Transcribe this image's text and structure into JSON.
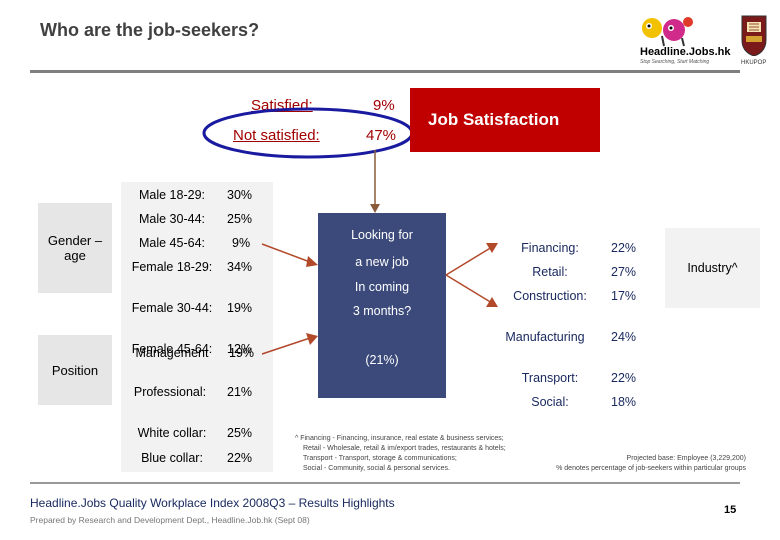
{
  "header": {
    "title": "Who are the job-seekers?",
    "logo_text": "Headline.Jobs.hk",
    "logo_tagline": "Stop Searching, Start Matching",
    "hku_label": "HKUPOP"
  },
  "satisfaction": {
    "satisfied_label": "Satisfied:",
    "satisfied_value": "9%",
    "not_satisfied_label": "Not satisfied:",
    "not_satisfied_value": "47%",
    "box_title": "Job Satisfaction"
  },
  "side_labels": {
    "gender_age": "Gender – age",
    "position": "Position"
  },
  "demographics": [
    {
      "label": "Male 18-29:",
      "value": "30%"
    },
    {
      "label": "Male 30-44:",
      "value": "25%"
    },
    {
      "label": "Male 45-64:",
      "value": "9%"
    },
    {
      "label": "Female 18-29:",
      "value": "34%"
    },
    {
      "label": "Female 30-44:",
      "value": "19%"
    },
    {
      "label": "Female 45-64:",
      "value": "12%"
    }
  ],
  "positions": [
    {
      "label": "Management",
      "value": "19%"
    },
    {
      "label": "Professional:",
      "value": "21%"
    },
    {
      "label": "White collar:",
      "value": "25%"
    },
    {
      "label": "Blue collar:",
      "value": "22%"
    }
  ],
  "center": {
    "line1": "Looking for",
    "line2": "a new job",
    "line3": "In coming",
    "line4": "3 months?",
    "percent": "(21%)"
  },
  "industry": {
    "box_label": "Industry^",
    "items": [
      {
        "label": "Financing:",
        "value": "22%"
      },
      {
        "label": "Retail:",
        "value": "27%"
      },
      {
        "label": "Construction:",
        "value": "17%"
      },
      {
        "label": "Manufacturing",
        "value": "24%"
      },
      {
        "label": "Transport:",
        "value": "22%"
      },
      {
        "label": "Social:",
        "value": "18%"
      }
    ]
  },
  "footnotes": {
    "line1": "^ Financing - Financing, insurance, real estate & business services;",
    "line2": "Retail - Wholesale, retail & im/export trades, restaurants & hotels;",
    "line3": "Transport - Transport, storage & communications;",
    "line4": "Social - Community, social & personal services.",
    "base": "Projected base: Employee (3,229,200)",
    "denotes": "% denotes percentage of job-seekers within particular groups"
  },
  "footer": {
    "quality": "Headline.Jobs Quality Workplace Index 2008Q3 – Results Highlights",
    "prepared": "Prepared by Research and Development Dept., Headline.Job.hk (Sept 08)",
    "page": "15"
  },
  "colors": {
    "accent_red": "#c00000",
    "navy_box": "#3b4a7a",
    "industry_text": "#1a2a60"
  }
}
